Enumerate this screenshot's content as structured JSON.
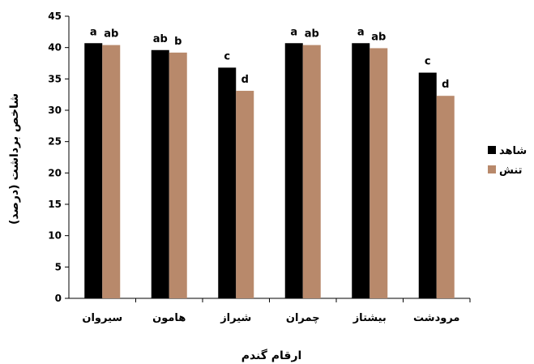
{
  "chart_data": {
    "type": "bar",
    "categories": [
      "سیروان",
      "هامون",
      "شیراز",
      "چمران",
      "بیشتاز",
      "مرودشت"
    ],
    "series": [
      {
        "name": "شاهد",
        "color": "#000000",
        "values": [
          40.7,
          39.6,
          36.8,
          40.7,
          40.7,
          36.0
        ],
        "letters": [
          "a",
          "ab",
          "c",
          "a",
          "a",
          "c"
        ]
      },
      {
        "name": "تنش",
        "color": "#b8896b",
        "values": [
          40.4,
          39.2,
          33.1,
          40.4,
          39.9,
          32.3
        ],
        "letters": [
          "ab",
          "b",
          "d",
          "ab",
          "ab",
          "d"
        ]
      }
    ],
    "xlabel": "ارقام گندم",
    "ylabel": "شاخص برداشت (درصد)",
    "ylim": [
      0,
      45
    ],
    "yticks": [
      0,
      5,
      10,
      15,
      20,
      25,
      30,
      35,
      40,
      45
    ],
    "grid": false,
    "legend_position": "right"
  }
}
